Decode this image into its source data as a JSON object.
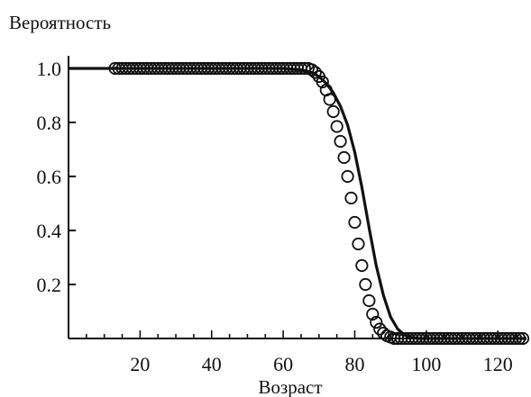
{
  "chart_data": {
    "type": "scatter",
    "ylabel": "Вероятность",
    "xlabel": "Возраст",
    "xlim": [
      0,
      128
    ],
    "ylim": [
      0,
      1.05
    ],
    "x_ticks": [
      20,
      40,
      60,
      80,
      100,
      120
    ],
    "y_ticks": [
      0.2,
      0.4,
      0.6,
      0.8,
      1.0
    ],
    "x_tick_labels": [
      "20",
      "40",
      "60",
      "80",
      "100",
      "120"
    ],
    "y_tick_labels": [
      "0.2",
      "0.4",
      "0.6",
      "0.8",
      "1.0"
    ],
    "grid": false,
    "colors": {
      "ink": "#111111"
    },
    "series": [
      {
        "kind": "markers",
        "marker": "open-circle",
        "x": [
          13,
          14,
          15,
          16,
          17,
          18,
          19,
          20,
          21,
          22,
          23,
          24,
          25,
          26,
          27,
          28,
          29,
          30,
          31,
          32,
          33,
          34,
          35,
          36,
          37,
          38,
          39,
          40,
          41,
          42,
          43,
          44,
          45,
          46,
          47,
          48,
          49,
          50,
          51,
          52,
          53,
          54,
          55,
          56,
          57,
          58,
          59,
          60,
          61,
          62,
          63,
          64,
          65,
          66,
          67,
          68,
          69,
          70,
          71,
          72,
          73,
          74,
          75,
          76,
          77,
          78,
          79,
          80,
          81,
          82,
          83,
          84,
          85,
          86,
          87,
          88,
          89,
          90,
          91,
          92,
          93,
          94,
          95,
          96,
          97,
          98,
          99,
          100,
          101,
          102,
          103,
          104,
          105,
          106,
          107,
          108,
          109,
          110,
          111,
          112,
          113,
          114,
          115,
          116,
          117,
          118,
          119,
          120,
          121,
          122,
          123,
          124,
          125,
          126,
          127
        ],
        "y": [
          1.0,
          1.0,
          1.0,
          1.0,
          1.0,
          1.0,
          1.0,
          1.0,
          1.0,
          1.0,
          1.0,
          1.0,
          1.0,
          1.0,
          1.0,
          1.0,
          1.0,
          1.0,
          1.0,
          1.0,
          1.0,
          1.0,
          1.0,
          1.0,
          1.0,
          1.0,
          1.0,
          1.0,
          1.0,
          1.0,
          1.0,
          1.0,
          1.0,
          1.0,
          1.0,
          1.0,
          1.0,
          1.0,
          1.0,
          1.0,
          1.0,
          1.0,
          1.0,
          1.0,
          1.0,
          1.0,
          1.0,
          1.0,
          1.0,
          1.0,
          1.0,
          1.0,
          1.0,
          1.0,
          1.0,
          0.995,
          0.985,
          0.97,
          0.95,
          0.92,
          0.885,
          0.84,
          0.785,
          0.73,
          0.67,
          0.6,
          0.52,
          0.43,
          0.35,
          0.27,
          0.2,
          0.14,
          0.09,
          0.06,
          0.035,
          0.02,
          0.01,
          0.005,
          0.0,
          0.0,
          0.0,
          0.0,
          0.0,
          0.0,
          0.0,
          0.0,
          0.0,
          0.0,
          0.0,
          0.0,
          0.0,
          0.0,
          0.0,
          0.0,
          0.0,
          0.0,
          0.0,
          0.0,
          0.0,
          0.0,
          0.0,
          0.0,
          0.0,
          0.0,
          0.0,
          0.0,
          0.0,
          0.0,
          0.0,
          0.0,
          0.0,
          0.0,
          0.0,
          0.0,
          0.0
        ]
      },
      {
        "kind": "line",
        "x": [
          0,
          5,
          10,
          20,
          30,
          40,
          50,
          60,
          65,
          68,
          70,
          72,
          74,
          76,
          78,
          80,
          82,
          84,
          86,
          88,
          90,
          92,
          94,
          96,
          98,
          100,
          105,
          110,
          120,
          128
        ],
        "y": [
          1.0,
          1.0,
          1.0,
          1.0,
          1.0,
          1.0,
          1.0,
          1.0,
          0.995,
          0.985,
          0.97,
          0.945,
          0.91,
          0.86,
          0.79,
          0.69,
          0.56,
          0.41,
          0.27,
          0.16,
          0.08,
          0.035,
          0.012,
          0.003,
          0.0,
          0.0,
          0.0,
          0.0,
          0.0,
          0.0
        ]
      }
    ]
  }
}
